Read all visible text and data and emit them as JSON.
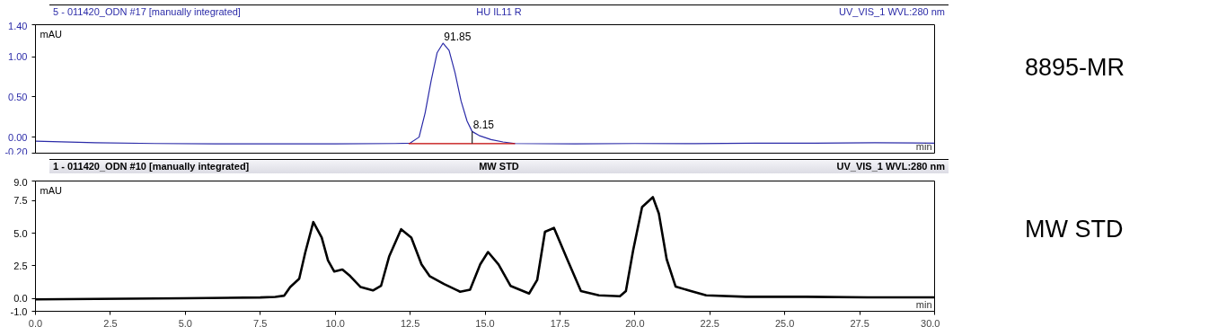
{
  "chart_data": [
    {
      "type": "line",
      "title": "5 - 011420_ODN #17 [manually integrated]",
      "subtitle": "HU IL11 R",
      "xlabel": "min",
      "ylabel": "mAU",
      "annotations": [
        "UV_VIS_1 WVL:280 nm",
        "8895-MR",
        {
          "text": "91.85",
          "x": 13.6,
          "y": 1.17
        },
        {
          "text": "8.15",
          "x": 14.57,
          "y": 0.07
        }
      ],
      "xlim": [
        0,
        30
      ],
      "ylim": [
        -0.2,
        1.4
      ],
      "yticks": [
        {
          "value": -0.2,
          "label": "-0.20"
        },
        {
          "value": 0,
          "label": "0.00"
        },
        {
          "value": 0.5,
          "label": "0.50"
        },
        {
          "value": 1.0,
          "label": "1.00"
        },
        {
          "value": 1.4,
          "label": "1.40"
        }
      ],
      "tick_labels": "y",
      "series": [
        {
          "color": "#2b2ba8",
          "x": [
            0,
            2,
            4,
            6,
            8,
            10,
            12,
            12.5,
            12.8,
            13.0,
            13.2,
            13.4,
            13.6,
            13.8,
            14.0,
            14.2,
            14.4,
            14.57,
            14.8,
            15.2,
            15.6,
            16,
            18,
            20,
            22,
            24,
            26,
            28,
            30
          ],
          "values": [
            -0.05,
            -0.07,
            -0.08,
            -0.085,
            -0.085,
            -0.085,
            -0.08,
            -0.075,
            0.0,
            0.3,
            0.7,
            1.05,
            1.17,
            1.08,
            0.8,
            0.45,
            0.2,
            0.07,
            0.02,
            -0.03,
            -0.06,
            -0.08,
            -0.085,
            -0.08,
            -0.08,
            -0.075,
            -0.075,
            -0.07,
            -0.075
          ]
        },
        {
          "color": "#c00000",
          "x": [
            12.45,
            16.0
          ],
          "values": [
            -0.08,
            -0.08
          ]
        },
        {
          "color": "#202020",
          "x": [
            14.57,
            14.57
          ],
          "values": [
            -0.08,
            0.07
          ]
        }
      ]
    },
    {
      "type": "line",
      "title": "1 - 011420_ODN #10 [manually integrated]",
      "subtitle": "MW STD",
      "xlabel": "min",
      "ylabel": "mAU",
      "annotations": [
        "UV_VIS_1 WVL:280 nm",
        "MW STD"
      ],
      "xlim": [
        0,
        30
      ],
      "ylim": [
        -1.0,
        9.0
      ],
      "xticks": [
        {
          "value": 0,
          "label": "0.0"
        },
        {
          "value": 2.5,
          "label": "2.5"
        },
        {
          "value": 5,
          "label": "5.0"
        },
        {
          "value": 7.5,
          "label": "7.5"
        },
        {
          "value": 10,
          "label": "10.0"
        },
        {
          "value": 12.5,
          "label": "12.5"
        },
        {
          "value": 15,
          "label": "15.0"
        },
        {
          "value": 17.5,
          "label": "17.5"
        },
        {
          "value": 20,
          "label": "20.0"
        },
        {
          "value": 22.5,
          "label": "22.5"
        },
        {
          "value": 25,
          "label": "25.0"
        },
        {
          "value": 27.5,
          "label": "27.5"
        },
        {
          "value": 30,
          "label": "30.0"
        }
      ],
      "yticks": [
        {
          "value": -1,
          "label": "-1.0"
        },
        {
          "value": 0,
          "label": "0.0"
        },
        {
          "value": 2.5,
          "label": "2.5"
        },
        {
          "value": 5,
          "label": "5.0"
        },
        {
          "value": 7.5,
          "label": "7.5"
        },
        {
          "value": 9,
          "label": "9.0"
        }
      ],
      "series": [
        {
          "color": "#000000",
          "x": [
            0,
            5,
            7.5,
            8.0,
            8.3,
            8.5,
            8.8,
            9.0,
            9.27,
            9.55,
            9.76,
            9.97,
            10.24,
            10.5,
            10.85,
            11.26,
            11.53,
            11.8,
            12.2,
            12.54,
            12.88,
            13.15,
            13.63,
            14.17,
            14.5,
            14.84,
            15.1,
            15.45,
            15.85,
            16.47,
            16.74,
            17.0,
            17.3,
            17.76,
            18.2,
            18.8,
            19.5,
            19.7,
            19.94,
            20.24,
            20.6,
            20.8,
            21.06,
            21.36,
            21.87,
            22.38,
            23.7,
            25.7,
            27.77,
            30
          ],
          "values": [
            -0.09,
            0.0,
            0.06,
            0.1,
            0.2,
            0.86,
            1.5,
            3.5,
            5.85,
            4.66,
            2.9,
            2.05,
            2.2,
            1.7,
            0.86,
            0.6,
            0.95,
            3.2,
            5.3,
            4.66,
            2.6,
            1.7,
            1.1,
            0.5,
            0.65,
            2.6,
            3.55,
            2.6,
            0.95,
            0.36,
            1.4,
            5.1,
            5.4,
            2.9,
            0.55,
            0.22,
            0.15,
            0.55,
            3.66,
            7.0,
            7.76,
            6.5,
            3.0,
            0.89,
            0.55,
            0.22,
            0.11,
            0.11,
            0.07,
            0.07
          ]
        }
      ]
    }
  ]
}
